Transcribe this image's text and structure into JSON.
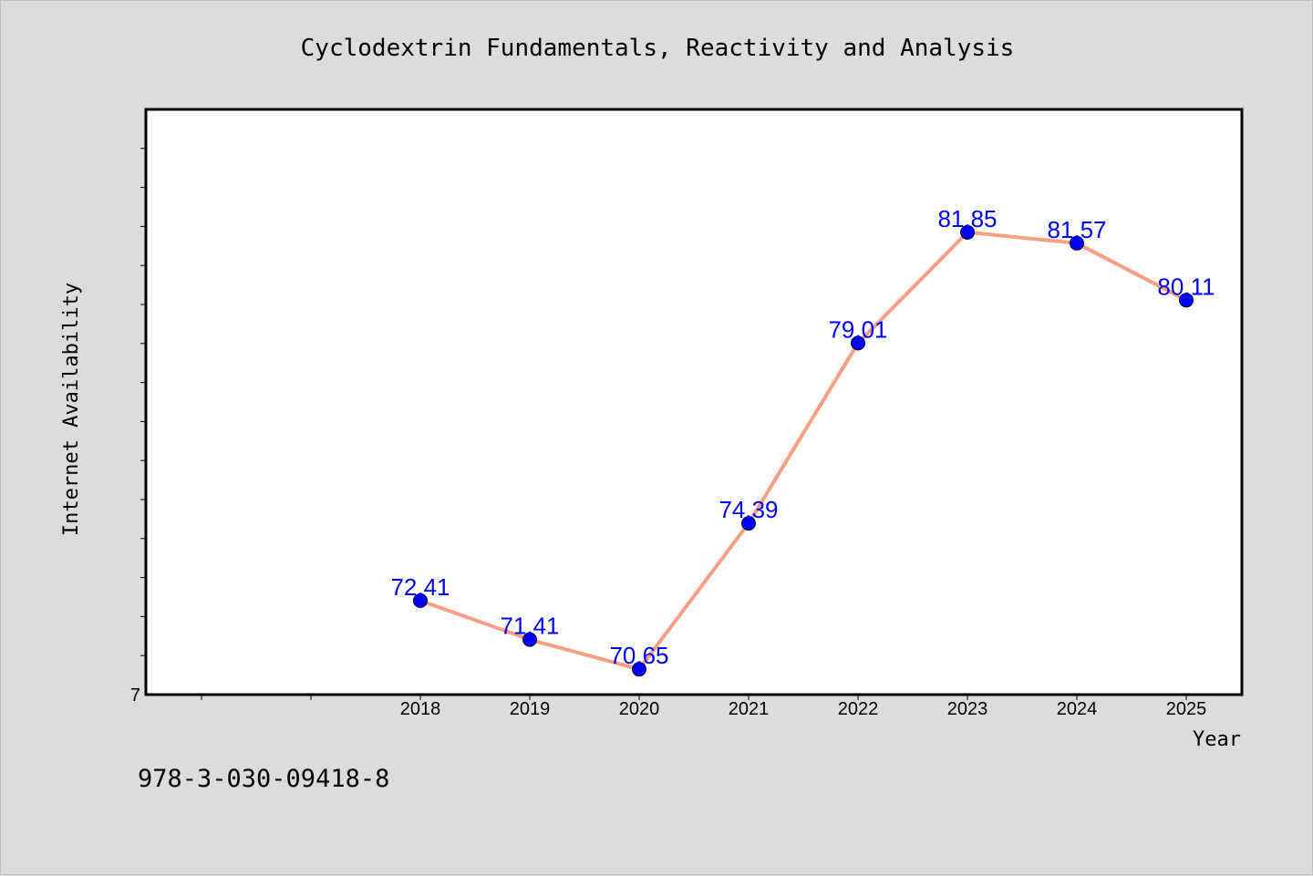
{
  "chart_data": {
    "type": "line",
    "title": "Cyclodextrin Fundamentals, Reactivity and Analysis",
    "xlabel": "Year",
    "ylabel": "Internet Availability",
    "categories": [
      "2018",
      "2019",
      "2020",
      "2021",
      "2022",
      "2023",
      "2024",
      "2025"
    ],
    "series": [
      {
        "values": [
          72.41,
          71.41,
          70.65,
          74.39,
          79.01,
          81.85,
          81.57,
          80.11
        ],
        "data_labels": [
          "72.41",
          "71.41",
          "70.65",
          "74.39",
          "79.01",
          "81.85",
          "81.57",
          "80.11"
        ],
        "line_color": "#f79f7f",
        "marker_color": "#0000ff"
      }
    ],
    "y_tick_labels": [
      "7"
    ],
    "ylim": [
      70,
      85
    ],
    "grid": false,
    "legend": "none",
    "footnote": "978-3-030-09418-8",
    "colors": {
      "background": "#dcdcdc",
      "plot_background": "#ffffff",
      "line": "#f79f7f",
      "marker": "#0000ff",
      "data_label": "#0000ff"
    }
  }
}
